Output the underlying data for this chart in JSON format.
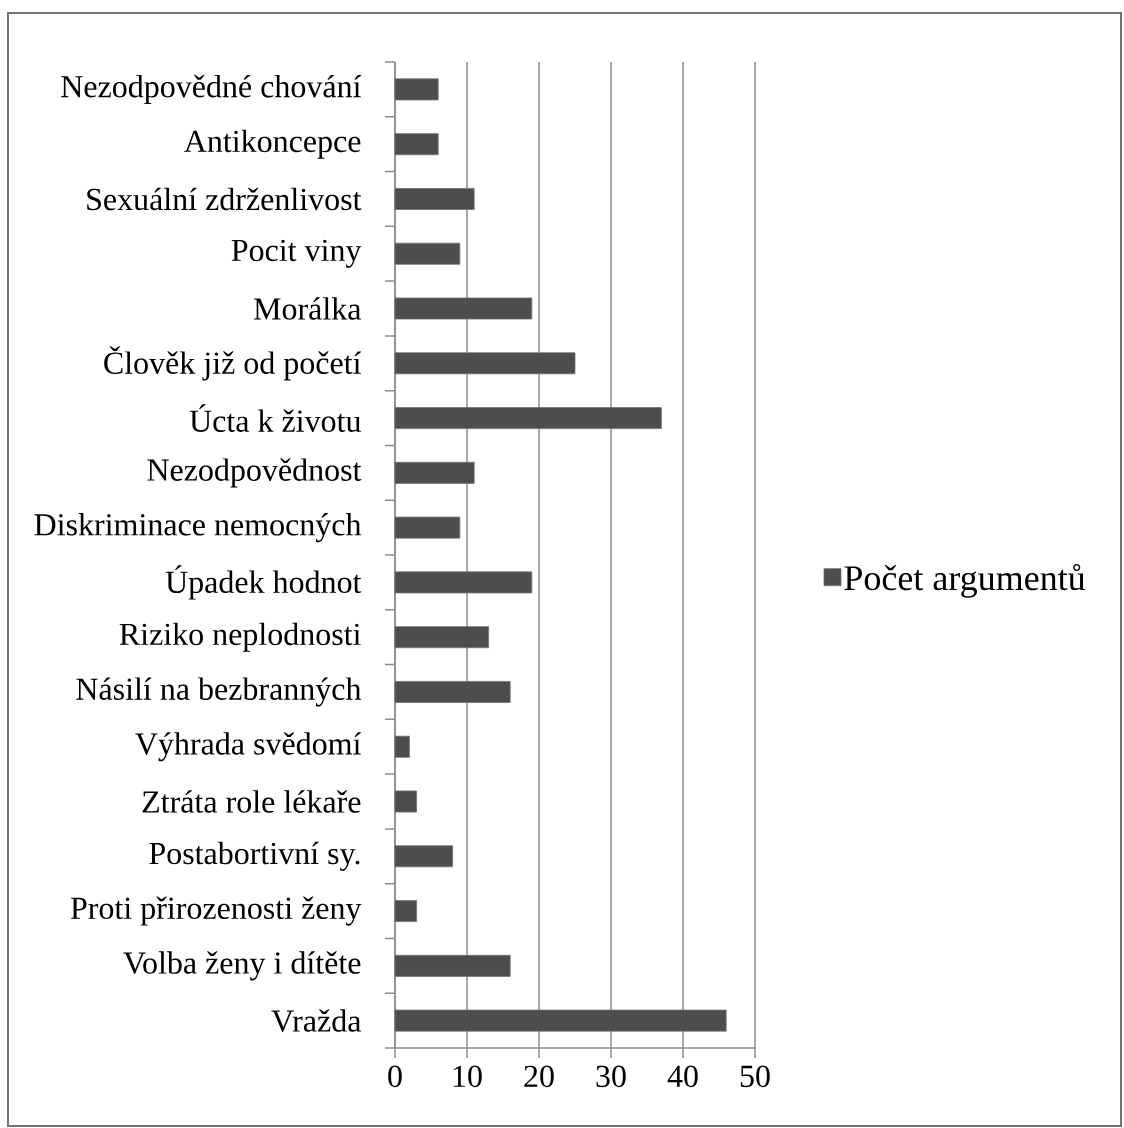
{
  "chart_data": {
    "type": "bar",
    "orientation": "horizontal",
    "categories": [
      "Nezodpovědné chování",
      "Antikoncepce",
      "Sexuální zdrženlivost",
      "Pocit viny",
      "Morálka",
      "Člověk již od početí",
      "Úcta k životu",
      "Nezodpovědnost",
      "Diskriminace nemocných",
      "Úpadek hodnot",
      "Riziko neplodnosti",
      "Násilí na bezbranných",
      "Výhrada svědomí",
      "Ztráta role lékaře",
      "Postabortivní sy.",
      "Proti přirozenosti ženy",
      "Volba ženy i dítěte",
      "Vražda"
    ],
    "series": [
      {
        "name": "Počet argumentů",
        "color": "#4d4d4d",
        "values": [
          6,
          6,
          11,
          9,
          19,
          25,
          37,
          11,
          9,
          19,
          13,
          16,
          2,
          3,
          8,
          3,
          16,
          46
        ]
      }
    ],
    "xlim": [
      0,
      50
    ],
    "xticks": [
      0,
      10,
      20,
      30,
      40,
      50
    ],
    "grid": "x",
    "legend": "right"
  }
}
